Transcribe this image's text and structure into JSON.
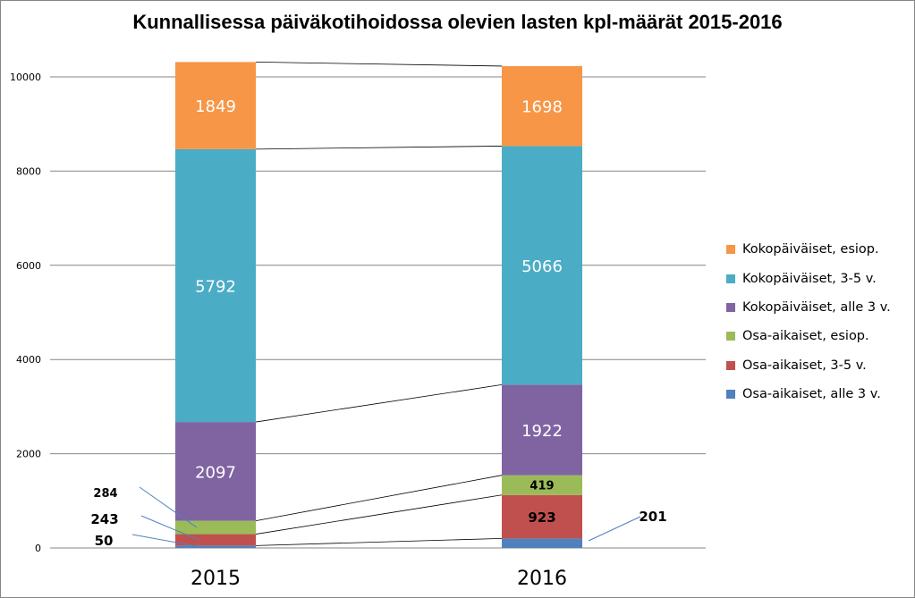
{
  "chart_data": {
    "type": "bar",
    "stacked": true,
    "title": "Kunnallisessa päiväkotihoidossa olevien lasten kpl-määrät 2015-2016",
    "categories": [
      "2015",
      "2016"
    ],
    "ylim": [
      0,
      10000
    ],
    "yticks": [
      0,
      2000,
      4000,
      6000,
      8000,
      10000
    ],
    "grid": true,
    "legend_position": "right",
    "series": [
      {
        "name": "Osa-aikaiset, alle 3 v.",
        "color": "#4F81BD",
        "values": [
          50,
          201
        ]
      },
      {
        "name": "Osa-aikaiset, 3-5 v.",
        "color": "#C0504D",
        "values": [
          243,
          923
        ]
      },
      {
        "name": "Osa-aikaiset, esiop.",
        "color": "#9BBB59",
        "values": [
          284,
          419
        ]
      },
      {
        "name": "Kokopäiväiset, alle 3 v.",
        "color": "#8064A2",
        "values": [
          2097,
          1922
        ]
      },
      {
        "name": "Kokopäiväiset, 3-5 v.",
        "color": "#4BACC6",
        "values": [
          5792,
          5066
        ]
      },
      {
        "name": "Kokopäiväiset, esiop.",
        "color": "#F79646",
        "values": [
          1849,
          1698
        ]
      }
    ],
    "label_colors": {
      "inside_light": "#FFFFFF",
      "inside_dark": "#000000",
      "outside": "#000000",
      "leader": "#4F81BD",
      "series_line": "#000000"
    }
  }
}
